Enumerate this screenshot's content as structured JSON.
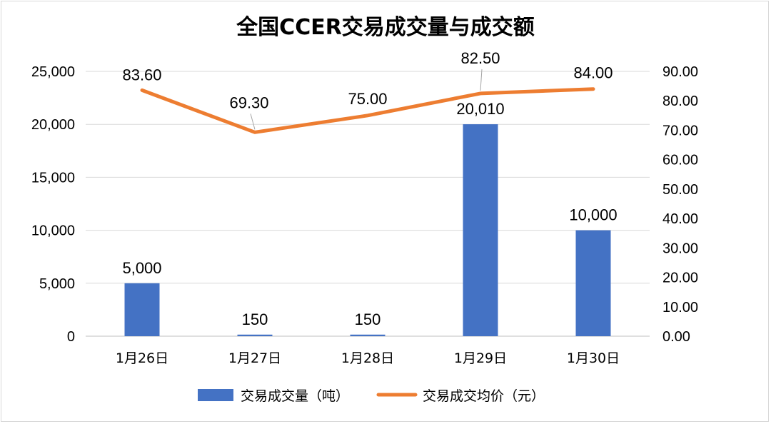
{
  "chart_data": {
    "type": "bar",
    "title": "全国CCER交易成交量与成交额",
    "categories": [
      "1月26日",
      "1月27日",
      "1月28日",
      "1月29日",
      "1月30日"
    ],
    "series": [
      {
        "name": "交易成交量（吨）",
        "type": "bar",
        "axis": "left",
        "color": "#4472C4",
        "values": [
          5000,
          150,
          150,
          20010,
          10000
        ],
        "labels": [
          "5,000",
          "150",
          "150",
          "20,010",
          "10,000"
        ]
      },
      {
        "name": "交易成交均价（元）",
        "type": "line",
        "axis": "right",
        "color": "#ED7D31",
        "values": [
          83.6,
          69.3,
          75.0,
          82.5,
          84.0
        ],
        "labels": [
          "83.60",
          "69.30",
          "75.00",
          "82.50",
          "84.00"
        ]
      }
    ],
    "left_axis": {
      "ylim": [
        0,
        25000
      ],
      "ticks": [
        0,
        5000,
        10000,
        15000,
        20000,
        25000
      ],
      "tick_labels": [
        "0",
        "5,000",
        "10,000",
        "15,000",
        "20,000",
        "25,000"
      ]
    },
    "right_axis": {
      "ylim": [
        0,
        90
      ],
      "ticks": [
        0,
        10,
        20,
        30,
        40,
        50,
        60,
        70,
        80,
        90
      ],
      "tick_labels": [
        "0.00",
        "10.00",
        "20.00",
        "30.00",
        "40.00",
        "50.00",
        "60.00",
        "70.00",
        "80.00",
        "90.00"
      ]
    },
    "grid": true,
    "legend_position": "bottom",
    "gridline_color": "#d9d9d9"
  }
}
